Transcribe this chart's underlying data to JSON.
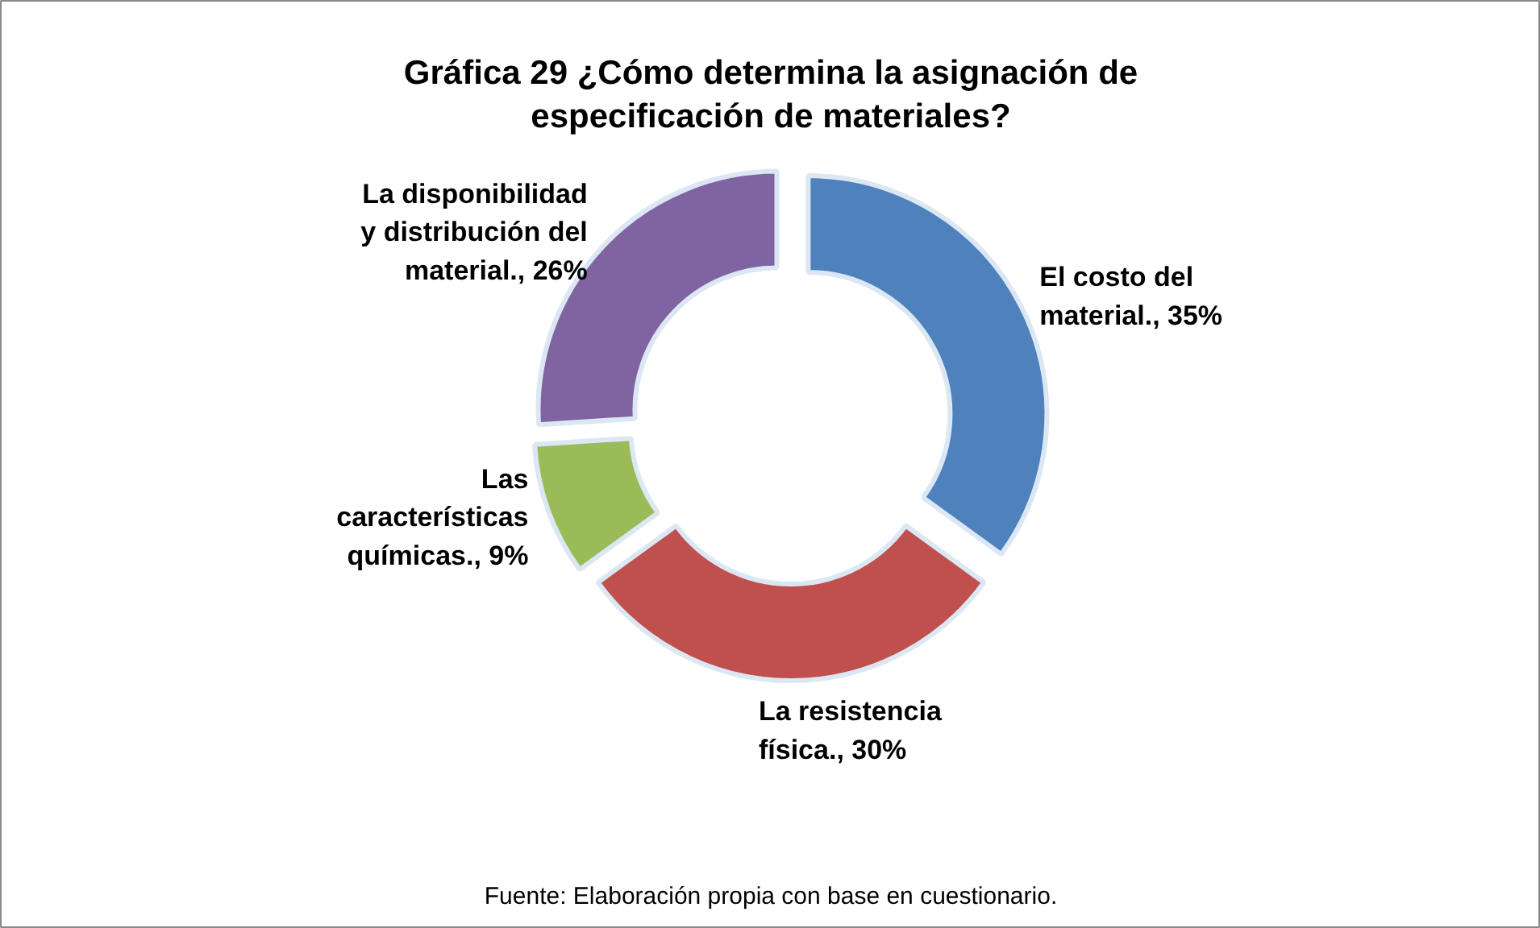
{
  "chart_data": {
    "type": "donut",
    "title": "Gráfica 29 ¿Cómo determina la asignación de\nespecificación de materiales?",
    "categories": [
      "El costo del\nmaterial.",
      "La resistencia\nfísica.",
      "Las\ncaracterísticas\nquímicas.",
      "La disponibilidad\ny distribución del\nmaterial."
    ],
    "values": [
      35,
      30,
      9,
      26
    ],
    "colors": [
      "#4f81bd",
      "#c0504d",
      "#9bbb59",
      "#8064a2"
    ],
    "value_labels": [
      "35%",
      "30%",
      "9%",
      "26%"
    ],
    "legend": false,
    "annotations": [
      "Fuente: Elaboración propia con base en cuestionario."
    ]
  }
}
